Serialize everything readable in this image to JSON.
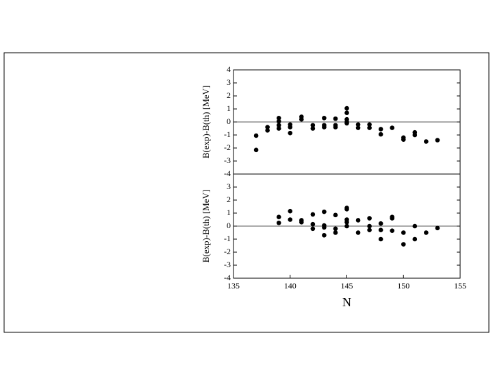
{
  "chart_data": [
    {
      "type": "scatter",
      "y_label": "B(exp)-B(th) [MeV]",
      "color": "#000000",
      "xlim": [
        135,
        155
      ],
      "ylim": [
        -4,
        4
      ],
      "yticks": [
        -4,
        -3,
        -2,
        -1,
        0,
        1,
        2,
        3,
        4
      ],
      "hline": 0,
      "x": [
        137,
        137,
        138,
        138,
        139,
        139,
        139,
        139,
        140,
        140,
        140,
        141,
        141,
        142,
        142,
        143,
        143,
        143,
        144,
        144,
        144,
        145,
        145,
        145,
        145,
        145,
        146,
        146,
        147,
        147,
        148,
        148,
        149,
        150,
        150,
        151,
        151,
        152,
        153
      ],
      "values": [
        -1.05,
        -2.15,
        -0.4,
        -0.65,
        0.3,
        0.05,
        -0.25,
        -0.5,
        -0.2,
        -0.4,
        -0.85,
        0.4,
        0.2,
        -0.25,
        -0.5,
        0.3,
        -0.25,
        -0.4,
        0.25,
        -0.25,
        -0.4,
        1.05,
        0.7,
        0.2,
        0.0,
        -0.1,
        -0.2,
        -0.45,
        -0.2,
        -0.45,
        -0.55,
        -0.95,
        -0.45,
        -1.2,
        -1.35,
        -0.8,
        -1.0,
        -1.5,
        -1.4
      ]
    },
    {
      "type": "scatter",
      "y_label": "B(exp)-B(th) [MeV]",
      "x_label": "N",
      "color": "#000000",
      "xlim": [
        135,
        155
      ],
      "xticks": [
        135,
        140,
        145,
        150,
        155
      ],
      "ylim": [
        -4,
        4
      ],
      "yticks": [
        -4,
        -3,
        -2,
        -1,
        0,
        1,
        2,
        3
      ],
      "hline": 0,
      "x": [
        139,
        139,
        140,
        140,
        141,
        141,
        142,
        142,
        142,
        143,
        143,
        143,
        143,
        144,
        144,
        144,
        145,
        145,
        145,
        145,
        145,
        146,
        146,
        147,
        147,
        147,
        148,
        148,
        148,
        149,
        149,
        149,
        150,
        150,
        151,
        151,
        152,
        153
      ],
      "values": [
        0.7,
        0.25,
        1.15,
        0.5,
        0.45,
        0.3,
        0.9,
        0.15,
        -0.2,
        1.1,
        0.05,
        -0.1,
        -0.7,
        0.85,
        -0.2,
        -0.5,
        1.4,
        1.3,
        0.5,
        0.3,
        0.0,
        0.45,
        -0.5,
        0.6,
        0.0,
        -0.3,
        0.2,
        -0.3,
        -1.0,
        0.7,
        0.6,
        -0.35,
        -0.5,
        -1.4,
        0.0,
        -1.0,
        -0.5,
        -0.15
      ]
    }
  ]
}
